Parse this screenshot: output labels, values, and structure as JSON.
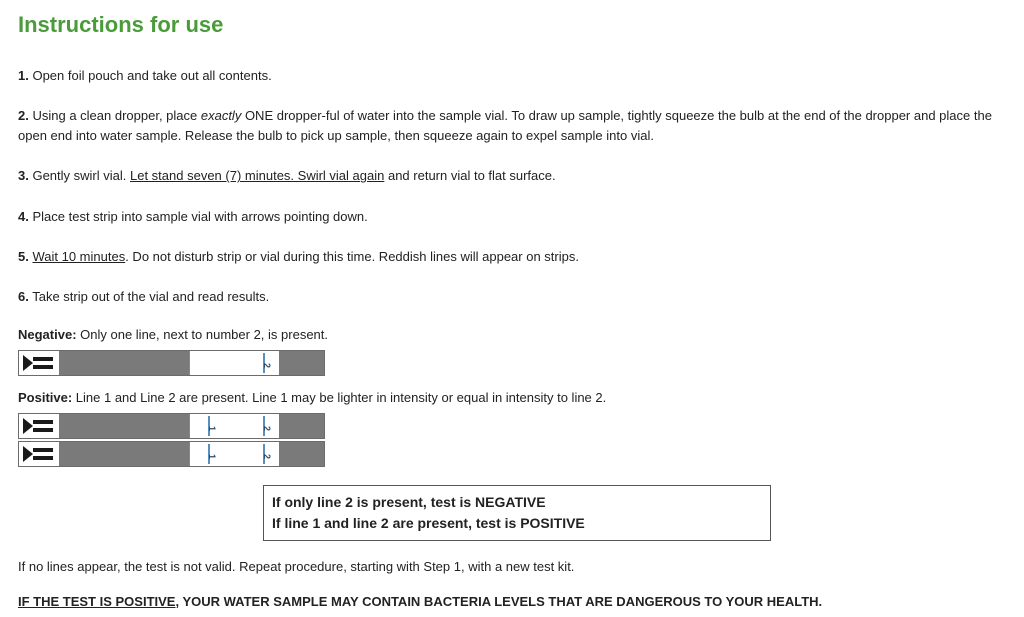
{
  "title": "Instructions for use",
  "steps": {
    "s1": "Open foil pouch and take out all contents.",
    "s2a": "Using a clean dropper, place ",
    "s2_em": "exactly",
    "s2b": " ONE dropper-ful of water into the sample vial. To draw up sample, tightly squeeze the bulb at the end of the dropper and place the open end into water sample. Release the bulb to pick up sample, then squeeze again to expel sample into vial.",
    "s3a": "Gently swirl vial. ",
    "s3_u": "Let stand seven (7) minutes. Swirl vial again",
    "s3b": " and return vial to flat surface.",
    "s4": "Place test strip into sample vial with arrows pointing down.",
    "s5_u": "Wait 10 minutes",
    "s5b": ". Do not disturb strip or vial during this time. Reddish lines will appear on strips.",
    "s6": "Take strip out of the vial and read results."
  },
  "numbers": {
    "n1": "1.",
    "n2": "2.",
    "n3": "3.",
    "n4": "4.",
    "n5": "5.",
    "n6": "6."
  },
  "results": {
    "neg_label": "Negative:",
    "neg_text": " Only one line, next to number 2, is present.",
    "pos_label": "Positive:",
    "pos_text": " Line 1 and Line 2 are present. Line 1 may be lighter in intensity or equal in intensity to line 2."
  },
  "marks": {
    "one": "1",
    "two": "2"
  },
  "summary": {
    "line1": "If only line 2 is present, test is NEGATIVE",
    "line2": "If line 1 and line 2 are present, test is POSITIVE"
  },
  "invalid": "If no lines appear, the test is not valid. Repeat procedure, starting with Step 1, with a new test kit.",
  "warning": {
    "leadin": "IF THE TEST IS POSITIVE",
    "rest": ", YOUR WATER SAMPLE MAY CONTAIN BACTERIA LEVELS THAT ARE DANGEROUS TO YOUR HEALTH."
  },
  "colors": {
    "title": "#4a9b3a",
    "strip_gray": "#7a7a7a",
    "strip_border": "#6b6b6b",
    "mark_line": "#5a8fbd",
    "mark_text": "#2a4d6a",
    "body_text": "#222222",
    "background": "#ffffff"
  }
}
